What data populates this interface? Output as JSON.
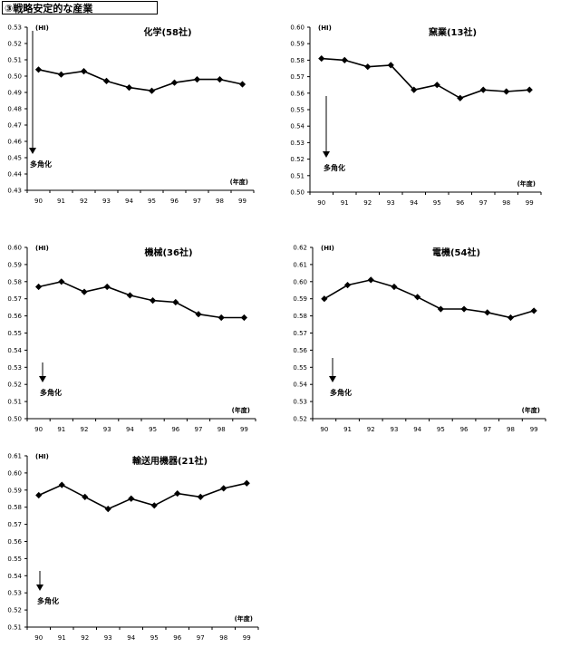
{
  "page_title": "③戦略安定的な産業",
  "chart_data": [
    {
      "type": "line",
      "title": "化学(58社)",
      "ylabel": "(HI)",
      "xlabel": "(年度)",
      "annotation": "多角化",
      "categories": [
        "90",
        "91",
        "92",
        "93",
        "94",
        "95",
        "96",
        "97",
        "98",
        "99"
      ],
      "values": [
        0.504,
        0.501,
        0.503,
        0.497,
        0.493,
        0.491,
        0.496,
        0.498,
        0.498,
        0.495
      ],
      "ylim": [
        0.43,
        0.53
      ],
      "yticks": [
        "0.53",
        "0.52",
        "0.51",
        "0.50",
        "0.49",
        "0.48",
        "0.47",
        "0.46",
        "0.45",
        "0.44",
        "0.43"
      ]
    },
    {
      "type": "line",
      "title": "窯業(13社)",
      "ylabel": "(HI)",
      "xlabel": "(年度)",
      "annotation": "多角化",
      "categories": [
        "90",
        "91",
        "92",
        "93",
        "94",
        "95",
        "96",
        "97",
        "98",
        "99"
      ],
      "values": [
        0.581,
        0.58,
        0.576,
        0.577,
        0.562,
        0.565,
        0.557,
        0.562,
        0.561,
        0.562
      ],
      "ylim": [
        0.5,
        0.6
      ],
      "yticks": [
        "0.60",
        "0.59",
        "0.58",
        "0.57",
        "0.56",
        "0.55",
        "0.54",
        "0.53",
        "0.52",
        "0.51",
        "0.50"
      ]
    },
    {
      "type": "line",
      "title": "機械(36社)",
      "ylabel": "(HI)",
      "xlabel": "(年度)",
      "annotation": "多角化",
      "categories": [
        "90",
        "91",
        "92",
        "93",
        "94",
        "95",
        "96",
        "97",
        "98",
        "99"
      ],
      "values": [
        0.577,
        0.58,
        0.574,
        0.577,
        0.572,
        0.569,
        0.568,
        0.561,
        0.559,
        0.559
      ],
      "ylim": [
        0.5,
        0.6
      ],
      "yticks": [
        "0.60",
        "0.59",
        "0.58",
        "0.57",
        "0.56",
        "0.55",
        "0.54",
        "0.53",
        "0.52",
        "0.51",
        "0.50"
      ]
    },
    {
      "type": "line",
      "title": "電機(54社)",
      "ylabel": "(HI)",
      "xlabel": "(年度)",
      "annotation": "多角化",
      "categories": [
        "90",
        "91",
        "92",
        "93",
        "94",
        "95",
        "96",
        "97",
        "98",
        "99"
      ],
      "values": [
        0.59,
        0.598,
        0.601,
        0.597,
        0.591,
        0.584,
        0.584,
        0.582,
        0.579,
        0.583
      ],
      "ylim": [
        0.52,
        0.62
      ],
      "yticks": [
        "0.62",
        "0.61",
        "0.60",
        "0.59",
        "0.58",
        "0.57",
        "0.56",
        "0.55",
        "0.54",
        "0.53",
        "0.52"
      ]
    },
    {
      "type": "line",
      "title": "輸送用機器(21社)",
      "ylabel": "(HI)",
      "xlabel": "(年度)",
      "annotation": "多角化",
      "categories": [
        "90",
        "91",
        "92",
        "93",
        "94",
        "95",
        "96",
        "97",
        "98",
        "99"
      ],
      "values": [
        0.587,
        0.593,
        0.586,
        0.579,
        0.585,
        0.581,
        0.588,
        0.586,
        0.591,
        0.594
      ],
      "ylim": [
        0.51,
        0.61
      ],
      "yticks": [
        "0.61",
        "0.60",
        "0.59",
        "0.58",
        "0.57",
        "0.56",
        "0.55",
        "0.54",
        "0.53",
        "0.52",
        "0.51"
      ]
    }
  ]
}
